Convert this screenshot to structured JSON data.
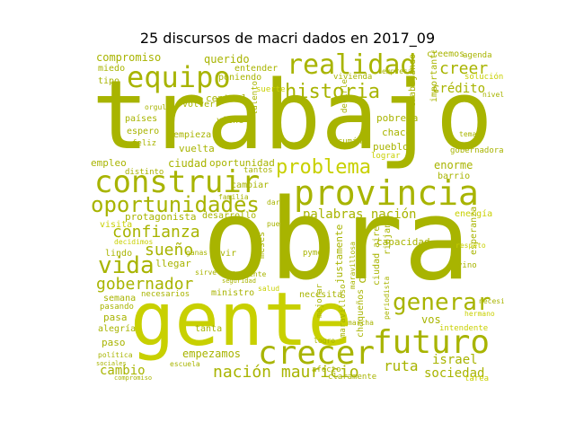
{
  "title": "25 discursos de macri dados en 2017_09",
  "palette": {
    "main": "#a8b400",
    "light": "#c8d000",
    "dark": "#8f9a00"
  },
  "words": [
    {
      "t": "trabajo",
      "c": "main"
    },
    {
      "t": "obra",
      "c": "main"
    },
    {
      "t": "gente",
      "c": "light"
    },
    {
      "t": "provincia",
      "c": "main"
    },
    {
      "t": "construir",
      "c": "main"
    },
    {
      "t": "crecer",
      "c": "main"
    },
    {
      "t": "futuro",
      "c": "main"
    },
    {
      "t": "realidad",
      "c": "main"
    },
    {
      "t": "equipo",
      "c": "main"
    },
    {
      "t": "oportunidades",
      "c": "main"
    },
    {
      "t": "historia",
      "c": "main"
    },
    {
      "t": "problema",
      "c": "light"
    },
    {
      "t": "generar",
      "c": "main"
    },
    {
      "t": "vida",
      "c": "main"
    },
    {
      "t": "nación mauricio",
      "c": "main"
    },
    {
      "t": "confianza",
      "c": "main"
    },
    {
      "t": "gobernador",
      "c": "main"
    },
    {
      "t": "sueño",
      "c": "main"
    },
    {
      "t": "creer",
      "c": "main"
    },
    {
      "t": "crédito",
      "c": "main"
    },
    {
      "t": "palabras nación",
      "c": "main"
    },
    {
      "t": "ruta",
      "c": "main"
    },
    {
      "t": "israel",
      "c": "main"
    },
    {
      "t": "sociedad",
      "c": "main"
    },
    {
      "t": "cambio",
      "c": "main"
    },
    {
      "t": "empezamos",
      "c": "main"
    },
    {
      "t": "enorme",
      "c": "main"
    },
    {
      "t": "capacidad",
      "c": "main"
    },
    {
      "t": "compromiso",
      "c": "main"
    },
    {
      "t": "querido",
      "c": "main"
    },
    {
      "t": "protagonista",
      "c": "main"
    },
    {
      "t": "ciudad",
      "c": "main"
    },
    {
      "t": "oportunidad",
      "c": "main"
    },
    {
      "t": "empleo",
      "c": "main"
    },
    {
      "t": "creemos",
      "c": "main"
    },
    {
      "t": "barrio",
      "c": "main"
    },
    {
      "t": "energía",
      "c": "light"
    },
    {
      "t": "chico",
      "c": "main"
    },
    {
      "t": "vos",
      "c": "main"
    },
    {
      "t": "justamente",
      "c": "main"
    },
    {
      "t": "ciudad aires",
      "c": "main"
    },
    {
      "t": "chaqueños",
      "c": "main"
    },
    {
      "t": "pobreza",
      "c": "main"
    },
    {
      "t": "chaco",
      "c": "main"
    },
    {
      "t": "pueblo",
      "c": "main"
    },
    {
      "t": "trabajando",
      "c": "main"
    },
    {
      "t": "importantes",
      "c": "main"
    },
    {
      "t": "esperanza",
      "c": "main"
    },
    {
      "t": "llegar",
      "c": "main"
    },
    {
      "t": "ministro",
      "c": "main"
    },
    {
      "t": "necesita",
      "c": "main"
    },
    {
      "t": "pasa",
      "c": "main"
    },
    {
      "t": "alegría",
      "c": "main"
    },
    {
      "t": "paso",
      "c": "main"
    },
    {
      "t": "semana",
      "c": "main"
    },
    {
      "t": "pasando",
      "c": "main"
    },
    {
      "t": "lindo",
      "c": "main"
    },
    {
      "t": "visita",
      "c": "light"
    },
    {
      "t": "decidimos",
      "c": "light"
    },
    {
      "t": "desarrollo",
      "c": "main"
    },
    {
      "t": "meses",
      "c": "main"
    },
    {
      "t": "maravilloso",
      "c": "main"
    },
    {
      "t": "riojano",
      "c": "main"
    },
    {
      "t": "intendente",
      "c": "light"
    },
    {
      "t": "central",
      "c": "main"
    },
    {
      "t": "vuelta",
      "c": "main"
    },
    {
      "t": "empieza",
      "c": "main"
    },
    {
      "t": "países",
      "c": "main"
    },
    {
      "t": "espero",
      "c": "main"
    },
    {
      "t": "feliz",
      "c": "main"
    },
    {
      "t": "viene",
      "c": "main"
    },
    {
      "t": "talento",
      "c": "main"
    },
    {
      "t": "decirle",
      "c": "main"
    },
    {
      "t": "lucumán",
      "c": "main"
    },
    {
      "t": "miedo",
      "c": "main"
    },
    {
      "t": "tipo",
      "c": "main"
    },
    {
      "t": "entender",
      "c": "main"
    },
    {
      "t": "poniendo",
      "c": "main"
    },
    {
      "t": "volver",
      "c": "main"
    },
    {
      "t": "suerte",
      "c": "light"
    },
    {
      "t": "vivienda",
      "c": "main"
    },
    {
      "t": "agenda",
      "c": "main"
    },
    {
      "t": "solución",
      "c": "light"
    },
    {
      "t": "gobernadora",
      "c": "main"
    },
    {
      "t": "distinto",
      "c": "main"
    },
    {
      "t": "cambiar",
      "c": "main"
    },
    {
      "t": "tantos",
      "c": "main"
    },
    {
      "t": "lograr",
      "c": "light"
    },
    {
      "t": "vivir",
      "c": "main"
    },
    {
      "t": "ganas",
      "c": "main"
    },
    {
      "t": "pyme",
      "c": "main"
    },
    {
      "t": "vino",
      "c": "main"
    },
    {
      "t": "tarea",
      "c": "light"
    },
    {
      "t": "afecto",
      "c": "main"
    },
    {
      "t": "claramente",
      "c": "main"
    },
    {
      "t": "mejorar",
      "c": "main"
    },
    {
      "t": "necesitamos",
      "c": "main"
    },
    {
      "t": "tanta",
      "c": "main"
    },
    {
      "t": "salud",
      "c": "light"
    },
    {
      "t": "periodista",
      "c": "main"
    },
    {
      "t": "maravillosa",
      "c": "main"
    },
    {
      "t": "sirve",
      "c": "main"
    },
    {
      "t": "hermano",
      "c": "light"
    },
    {
      "t": "necesarios",
      "c": "main"
    },
    {
      "t": "marcha",
      "c": "main"
    },
    {
      "t": "pueda",
      "c": "main"
    },
    {
      "t": "respeto",
      "c": "light"
    },
    {
      "t": "familia",
      "c": "main"
    },
    {
      "t": "dirigente",
      "c": "main"
    },
    {
      "t": "seguridad",
      "c": "main"
    },
    {
      "t": "escuela",
      "c": "main"
    },
    {
      "t": "política",
      "c": "main"
    },
    {
      "t": "sociales",
      "c": "main"
    },
    {
      "t": "orgullo",
      "c": "main"
    },
    {
      "t": "compromiso",
      "c": "main"
    },
    {
      "t": "nivel",
      "c": "main"
    },
    {
      "t": "dar",
      "c": "main"
    },
    {
      "t": "tema",
      "c": "main"
    },
    {
      "t": "logro",
      "c": "main"
    },
    {
      "t": "empresa",
      "c": "main"
    }
  ]
}
